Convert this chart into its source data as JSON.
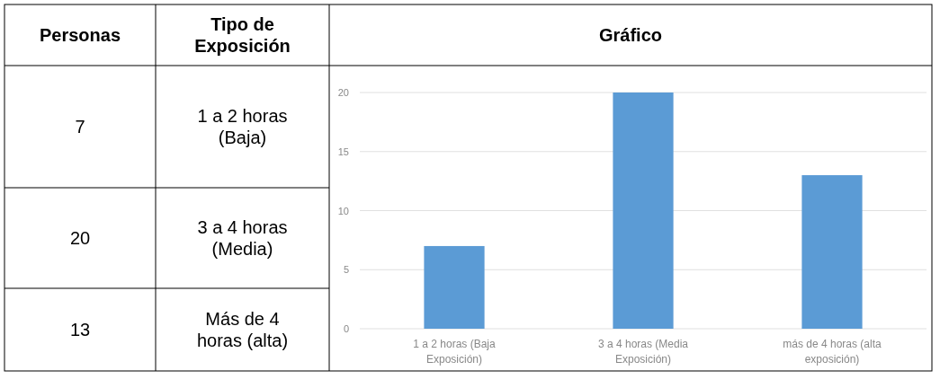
{
  "chart_data": {
    "type": "bar",
    "title": "Gráfico",
    "categories": [
      "1 a 2 horas (Baja Exposición)",
      "3 a 4 horas (Media Exposición)",
      "más de 4 horas (alta exposición)"
    ],
    "values": [
      7,
      20,
      13
    ],
    "color": "#5b9bd5",
    "ylim": [
      0,
      20
    ],
    "yticks": [
      0,
      5,
      10,
      15,
      20
    ],
    "grid": "y",
    "annotations": [
      "Personas",
      "Tipo de Exposición",
      "7",
      "1 a 2 horas (Baja)",
      "20",
      "3 a 4 horas (Media)",
      "13",
      "Más de 4 horas (alta)"
    ]
  }
}
